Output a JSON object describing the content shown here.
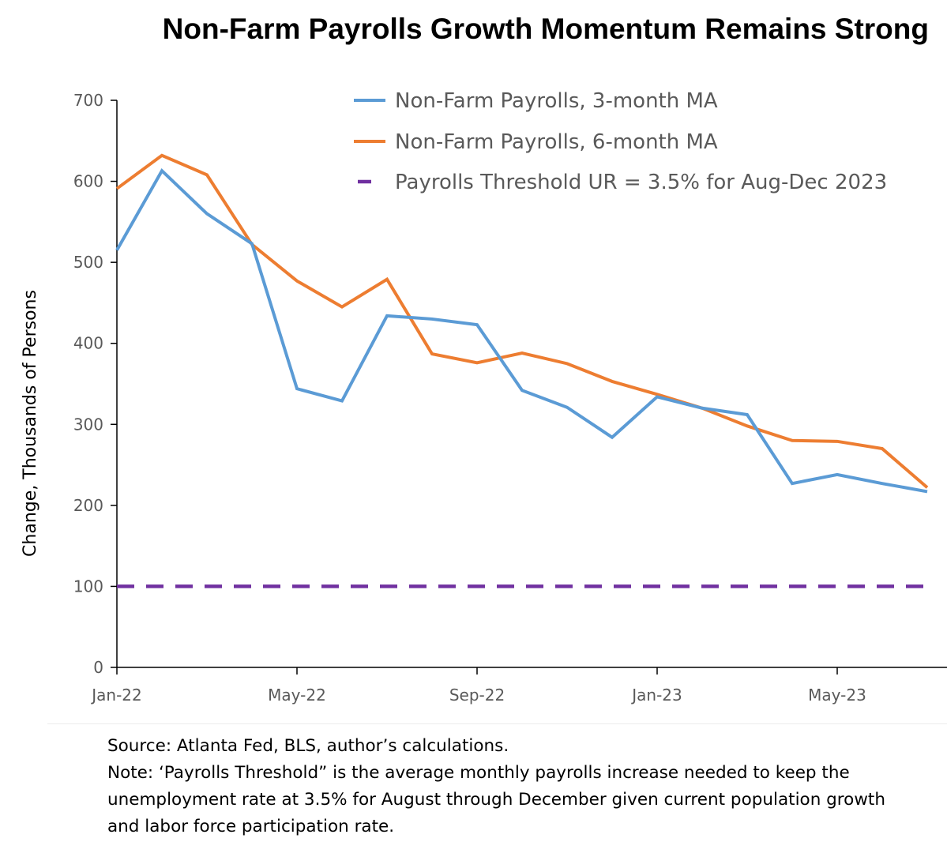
{
  "title": "Non-Farm Payrolls Growth Momentum Remains Strong",
  "chart_data": {
    "type": "line",
    "title": "Non-Farm Payrolls Growth Momentum Remains Strong",
    "ylabel": "Change, Thousands of Persons",
    "xlabel": "",
    "ylim": [
      0,
      700
    ],
    "yticks": [
      0,
      100,
      200,
      300,
      400,
      500,
      600,
      700
    ],
    "x_tick_labels": [
      "Jan-22",
      "May-22",
      "Sep-22",
      "Jan-23",
      "May-23"
    ],
    "x_tick_indices": [
      0,
      4,
      8,
      12,
      16
    ],
    "x_range": [
      0,
      18
    ],
    "grid": false,
    "legend_position": "top",
    "series": [
      {
        "name": "Non-Farm Payrolls, 3-month MA",
        "color": "#5B9BD5",
        "style": "solid",
        "values": [
          515,
          613,
          560,
          523,
          344,
          329,
          434,
          430,
          423,
          342,
          321,
          284,
          334,
          320,
          312,
          227,
          238,
          227,
          217
        ]
      },
      {
        "name": "Non-Farm Payrolls, 6-month MA",
        "color": "#ED7D31",
        "style": "solid",
        "values": [
          591,
          632,
          608,
          522,
          477,
          445,
          479,
          387,
          376,
          388,
          375,
          353,
          337,
          320,
          298,
          280,
          279,
          270,
          222
        ]
      },
      {
        "name": "Payrolls Threshold UR = 3.5% for Aug-Dec 2023",
        "color": "#7030A0",
        "style": "dashed",
        "values": [
          100,
          100,
          100,
          100,
          100,
          100,
          100,
          100,
          100,
          100,
          100,
          100,
          100,
          100,
          100,
          100,
          100,
          100,
          100
        ]
      }
    ]
  },
  "footnote": {
    "source": "Source: Atlanta Fed, BLS, author’s calculations.",
    "note_lines": [
      "Note: ‘Payrolls Threshold” is the average monthly payrolls increase needed to keep the",
      "unemployment rate at 3.5% for August through December given current population growth",
      "and labor force participation rate."
    ]
  }
}
